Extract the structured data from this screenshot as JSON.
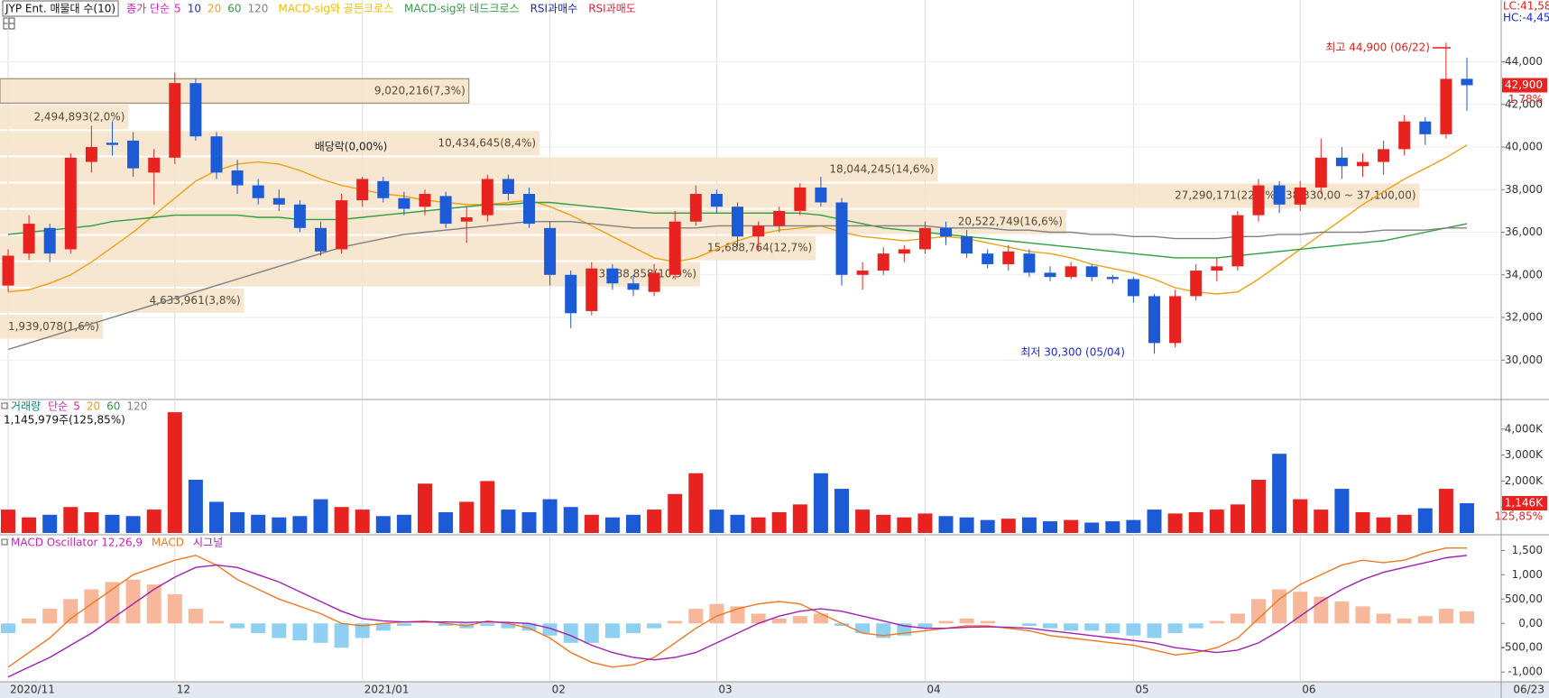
{
  "chart_data": [
    {
      "type": "candlestick",
      "title": "JYP Ent. 매물대 수(10)",
      "legend_title": "종가 단순",
      "categories": [
        "2020/11",
        null,
        null,
        null,
        null,
        null,
        null,
        null,
        "12",
        null,
        null,
        null,
        null,
        null,
        null,
        null,
        null,
        "2021/01",
        null,
        null,
        null,
        null,
        null,
        null,
        null,
        null,
        "02",
        null,
        null,
        null,
        null,
        null,
        null,
        null,
        "03",
        null,
        null,
        null,
        null,
        null,
        null,
        null,
        null,
        null,
        "04",
        null,
        null,
        null,
        null,
        null,
        null,
        null,
        null,
        null,
        "05",
        null,
        null,
        null,
        null,
        null,
        null,
        null,
        "06",
        null,
        null,
        null,
        null,
        null,
        null,
        null,
        null
      ],
      "open": [
        33500,
        35000,
        36200,
        35200,
        39300,
        40200,
        40300,
        38800,
        39500,
        43000,
        40500,
        38900,
        38200,
        37600,
        37300,
        36200,
        35200,
        37500,
        38400,
        37600,
        37200,
        37700,
        36500,
        36800,
        38500,
        37800,
        36200,
        34000,
        32300,
        34300,
        33600,
        33200,
        34000,
        36500,
        37800,
        37200,
        35800,
        36300,
        37000,
        38100,
        37400,
        34000,
        34200,
        35000,
        35200,
        36200,
        35800,
        35000,
        34500,
        35000,
        34100,
        33900,
        34400,
        33900,
        33800,
        33000,
        30800,
        33000,
        34200,
        34400,
        36800,
        38200,
        37300,
        38100,
        39500,
        39100,
        39300,
        39900,
        41200,
        40600,
        43200
      ],
      "high": [
        35200,
        36800,
        36400,
        39700,
        41000,
        41200,
        40700,
        39900,
        43500,
        43200,
        40700,
        39400,
        38500,
        38000,
        37500,
        36500,
        37800,
        38600,
        38600,
        37900,
        38000,
        37900,
        37200,
        38700,
        38700,
        38100,
        36500,
        34200,
        34600,
        34500,
        34000,
        34500,
        37000,
        38200,
        38000,
        37400,
        36500,
        37200,
        38300,
        38600,
        37600,
        34600,
        35300,
        35400,
        36500,
        36500,
        36100,
        35200,
        35400,
        35200,
        34400,
        34600,
        34500,
        34000,
        33900,
        33100,
        33300,
        34500,
        34800,
        37000,
        38500,
        38400,
        38400,
        40400,
        40000,
        39700,
        40300,
        41500,
        41400,
        44900,
        44200
      ],
      "low": [
        33200,
        34700,
        34600,
        35000,
        38800,
        39600,
        38600,
        37300,
        39200,
        40300,
        38500,
        37800,
        37300,
        37000,
        36000,
        34900,
        35000,
        37200,
        37400,
        36800,
        36800,
        36200,
        35500,
        36500,
        37500,
        36200,
        33500,
        31500,
        32100,
        33300,
        33000,
        33000,
        33800,
        36300,
        36900,
        35300,
        35100,
        36000,
        36800,
        37200,
        33500,
        33300,
        34000,
        34600,
        35000,
        35400,
        34800,
        34300,
        34200,
        33900,
        33700,
        33800,
        33700,
        33600,
        32700,
        30300,
        30600,
        32800,
        33700,
        34200,
        36500,
        36900,
        37000,
        37800,
        38500,
        38600,
        38700,
        39600,
        40100,
        40400,
        41700
      ],
      "close": [
        34900,
        36400,
        35000,
        39500,
        40000,
        40100,
        39000,
        39500,
        43000,
        40500,
        38800,
        38200,
        37600,
        37300,
        36200,
        35100,
        37500,
        38500,
        37600,
        37100,
        37800,
        36400,
        36700,
        38500,
        37800,
        36400,
        34000,
        32200,
        34300,
        33600,
        33300,
        34100,
        36500,
        37800,
        37200,
        35800,
        36300,
        37000,
        38100,
        37400,
        34000,
        34200,
        35000,
        35200,
        36200,
        35800,
        35000,
        34500,
        35100,
        34100,
        33900,
        34400,
        33900,
        33800,
        33000,
        30800,
        33000,
        34200,
        34400,
        36800,
        38200,
        37300,
        38100,
        39500,
        39100,
        39300,
        39900,
        41200,
        40600,
        43200,
        42900
      ],
      "up_color": "#e8231f",
      "down_color": "#1d5ad6",
      "ylim": [
        28150,
        46900
      ],
      "yticks": [
        {
          "value": 30000,
          "label": "30,000"
        },
        {
          "value": 32000,
          "label": "32,000"
        },
        {
          "value": 34000,
          "label": "34,000"
        },
        {
          "value": 36000,
          "label": "36,000"
        },
        {
          "value": 38000,
          "label": "38,000"
        },
        {
          "value": 40000,
          "label": "40,000"
        },
        {
          "value": 42000,
          "label": "42,000"
        },
        {
          "value": 44000,
          "label": "44,000"
        }
      ],
      "grid": true,
      "legend": [
        {
          "name": "5",
          "color": "#d020c0"
        },
        {
          "name": "10",
          "color": "#2030d0"
        },
        {
          "name": "20",
          "color": "#f0a010",
          "values": [
            33200,
            33300,
            33600,
            34000,
            34600,
            35300,
            36000,
            36800,
            37600,
            38400,
            38900,
            39200,
            39300,
            39200,
            38900,
            38500,
            38200,
            38000,
            37800,
            37700,
            37500,
            37400,
            37300,
            37300,
            37400,
            37500,
            37200,
            36800,
            36300,
            35800,
            35300,
            34800,
            34600,
            34800,
            35200,
            35600,
            35900,
            36100,
            36200,
            36300,
            36000,
            35800,
            35700,
            35600,
            35700,
            35800,
            35700,
            35500,
            35300,
            35100,
            35000,
            34800,
            34500,
            34300,
            34100,
            33800,
            33400,
            33200,
            33100,
            33200,
            33800,
            34500,
            35200,
            35900,
            36600,
            37300,
            37900,
            38500,
            39000,
            39500,
            40100
          ]
        },
        {
          "name": "60",
          "color": "#2ea040",
          "values": [
            35900,
            36000,
            36100,
            36200,
            36300,
            36500,
            36600,
            36700,
            36800,
            36800,
            36800,
            36800,
            36700,
            36700,
            36600,
            36600,
            36600,
            36700,
            36800,
            36900,
            37000,
            37100,
            37200,
            37300,
            37300,
            37400,
            37400,
            37300,
            37200,
            37100,
            37000,
            36900,
            36900,
            36900,
            36900,
            36900,
            36900,
            36900,
            36900,
            36800,
            36600,
            36400,
            36200,
            36100,
            36000,
            35900,
            35800,
            35700,
            35600,
            35500,
            35400,
            35300,
            35200,
            35100,
            35000,
            34900,
            34800,
            34800,
            34800,
            34900,
            35000,
            35100,
            35200,
            35300,
            35400,
            35500,
            35600,
            35800,
            36000,
            36200,
            36400
          ]
        },
        {
          "name": "120",
          "color": "#808080",
          "values": [
            30500,
            30800,
            31100,
            31400,
            31700,
            32000,
            32300,
            32600,
            32900,
            33200,
            33500,
            33800,
            34100,
            34400,
            34700,
            35000,
            35300,
            35500,
            35700,
            35900,
            36000,
            36100,
            36200,
            36300,
            36400,
            36500,
            36500,
            36500,
            36400,
            36300,
            36200,
            36200,
            36200,
            36200,
            36300,
            36300,
            36300,
            36300,
            36300,
            36300,
            36300,
            36300,
            36300,
            36300,
            36300,
            36200,
            36200,
            36200,
            36100,
            36100,
            36000,
            36000,
            35900,
            35900,
            35800,
            35800,
            35700,
            35700,
            35700,
            35800,
            35800,
            35900,
            35900,
            36000,
            36000,
            36000,
            36100,
            36100,
            36100,
            36200,
            36200
          ]
        }
      ],
      "signals": [
        {
          "name": "MACD-sig와 골든크로스",
          "color": "#f0c000"
        },
        {
          "name": "MACD-sig와 데드크로스",
          "color": "#2ea040"
        },
        {
          "name": "RSI과매수",
          "color": "#1a2aa0"
        },
        {
          "name": "RSI과매도",
          "color": "#e0203a"
        }
      ],
      "volume_profile": [
        {
          "label": "9,020,216(7,3%)",
          "high": 43250,
          "low": 42020,
          "share": 7.3
        },
        {
          "label": "2,494,893(2,0%)",
          "high": 42020,
          "low": 40790,
          "share": 2.0
        },
        {
          "label": "10,434,645(8,4%)",
          "high": 40790,
          "low": 39560,
          "share": 8.4
        },
        {
          "label": "18,044,245(14,6%)",
          "high": 39560,
          "low": 38330,
          "share": 14.6
        },
        {
          "label": "27,290,171(22,1%)",
          "range": "(38,330,00 ~ 37,100,00)",
          "high": 38330,
          "low": 37100,
          "share": 22.1
        },
        {
          "label": "20,522,749(16,6%)",
          "high": 37100,
          "low": 35870,
          "share": 16.6
        },
        {
          "label": "15,688,764(12,7%)",
          "high": 35870,
          "low": 34640,
          "share": 12.7
        },
        {
          "label": "13,488,858(10,9%)",
          "high": 34640,
          "low": 33410,
          "share": 10.9
        },
        {
          "label": "4,633,961(3,8%)",
          "high": 33410,
          "low": 32180,
          "share": 3.8
        },
        {
          "label": "1,939,078(1,6%)",
          "high": 32180,
          "low": 30950,
          "share": 1.6
        }
      ],
      "annotations": {
        "ex_dividend": "배당락(0,00%)",
        "high": "최고 44,900 (06/22)",
        "low": "최저 30,300 (05/04)"
      },
      "status": {
        "lc": "LC:41,58",
        "hc": "HC:-4,45",
        "last_price": "42,900",
        "change": "1,78%"
      },
      "last_date": "06/23"
    },
    {
      "type": "bar",
      "title": "거래량",
      "legend_title": "단순",
      "legend": [
        {
          "name": "5",
          "color": "#d020c0"
        },
        {
          "name": "20",
          "color": "#f0a010"
        },
        {
          "name": "60",
          "color": "#2ea040"
        },
        {
          "name": "120",
          "color": "#808080"
        }
      ],
      "summary": "1,145,979주(125,85%)",
      "values": [
        900,
        600,
        700,
        1000,
        800,
        700,
        650,
        900,
        4650,
        2050,
        1200,
        800,
        700,
        600,
        650,
        1300,
        1000,
        900,
        650,
        700,
        1900,
        800,
        1200,
        2000,
        900,
        800,
        1300,
        1000,
        700,
        600,
        700,
        900,
        1500,
        2300,
        900,
        700,
        600,
        800,
        1100,
        2300,
        1700,
        900,
        700,
        600,
        750,
        650,
        600,
        500,
        550,
        600,
        450,
        500,
        400,
        450,
        500,
        900,
        750,
        800,
        900,
        1100,
        2050,
        3050,
        1300,
        900,
        1700,
        800,
        600,
        700,
        950,
        1700,
        1146
      ],
      "ylim": [
        0,
        5140
      ],
      "yticks": [
        {
          "value": 1000,
          "label": "1,000K"
        },
        {
          "value": 2000,
          "label": "2,000K"
        },
        {
          "value": 3000,
          "label": "3,000K"
        },
        {
          "value": 4000,
          "label": "4,000K"
        }
      ],
      "status": {
        "last_volume": "1,146K",
        "ratio": "125,85%"
      }
    },
    {
      "type": "macd",
      "title": "MACD Oscillator 12,26,9",
      "values": [
        -200,
        100,
        300,
        500,
        700,
        850,
        900,
        800,
        600,
        300,
        50,
        -100,
        -200,
        -300,
        -350,
        -400,
        -500,
        -300,
        -150,
        -50,
        0,
        -50,
        -100,
        -50,
        -100,
        -150,
        -250,
        -400,
        -400,
        -300,
        -200,
        -100,
        50,
        300,
        400,
        350,
        200,
        100,
        150,
        200,
        -50,
        -200,
        -300,
        -250,
        -100,
        50,
        100,
        50,
        0,
        -50,
        -100,
        -150,
        -150,
        -200,
        -250,
        -300,
        -200,
        -100,
        50,
        200,
        500,
        700,
        650,
        550,
        450,
        350,
        200,
        100,
        150,
        300,
        250
      ],
      "pos_color": "#f7b79a",
      "neg_color": "#8fd0f2",
      "series": [
        {
          "name": "MACD",
          "color": "#f07820",
          "values": [
            -900,
            -600,
            -300,
            100,
            400,
            700,
            1000,
            1150,
            1300,
            1400,
            1200,
            900,
            700,
            500,
            350,
            200,
            0,
            -50,
            0,
            30,
            50,
            0,
            -50,
            50,
            0,
            -100,
            -300,
            -600,
            -800,
            -900,
            -850,
            -700,
            -400,
            -100,
            150,
            300,
            400,
            450,
            400,
            200,
            0,
            -200,
            -250,
            -200,
            -150,
            -100,
            -50,
            -50,
            -100,
            -150,
            -250,
            -300,
            -350,
            -400,
            -450,
            -550,
            -650,
            -600,
            -500,
            -300,
            100,
            500,
            800,
            1000,
            1200,
            1300,
            1250,
            1300,
            1450,
            1550,
            1550
          ]
        },
        {
          "name": "시그널",
          "color": "#a020b0",
          "values": [
            -1100,
            -900,
            -700,
            -450,
            -200,
            100,
            400,
            700,
            950,
            1150,
            1200,
            1150,
            1000,
            850,
            650,
            450,
            250,
            100,
            50,
            30,
            30,
            30,
            20,
            30,
            20,
            0,
            -100,
            -250,
            -450,
            -600,
            -700,
            -750,
            -700,
            -600,
            -400,
            -200,
            0,
            150,
            250,
            300,
            250,
            150,
            50,
            -50,
            -100,
            -100,
            -80,
            -70,
            -80,
            -100,
            -150,
            -200,
            -250,
            -300,
            -350,
            -400,
            -500,
            -550,
            -600,
            -550,
            -400,
            -150,
            150,
            450,
            700,
            900,
            1050,
            1150,
            1250,
            1350,
            1400
          ]
        }
      ],
      "ylim": [
        -1200,
        1785
      ],
      "yticks": [
        {
          "value": 1500,
          "label": "1,500"
        },
        {
          "value": 1000,
          "label": "1,000"
        },
        {
          "value": 500,
          "label": "500,00"
        },
        {
          "value": 0,
          "label": "0,00"
        },
        {
          "value": -500,
          "label": "-500,00"
        },
        {
          "value": -1000,
          "label": "-1,000"
        }
      ]
    }
  ]
}
